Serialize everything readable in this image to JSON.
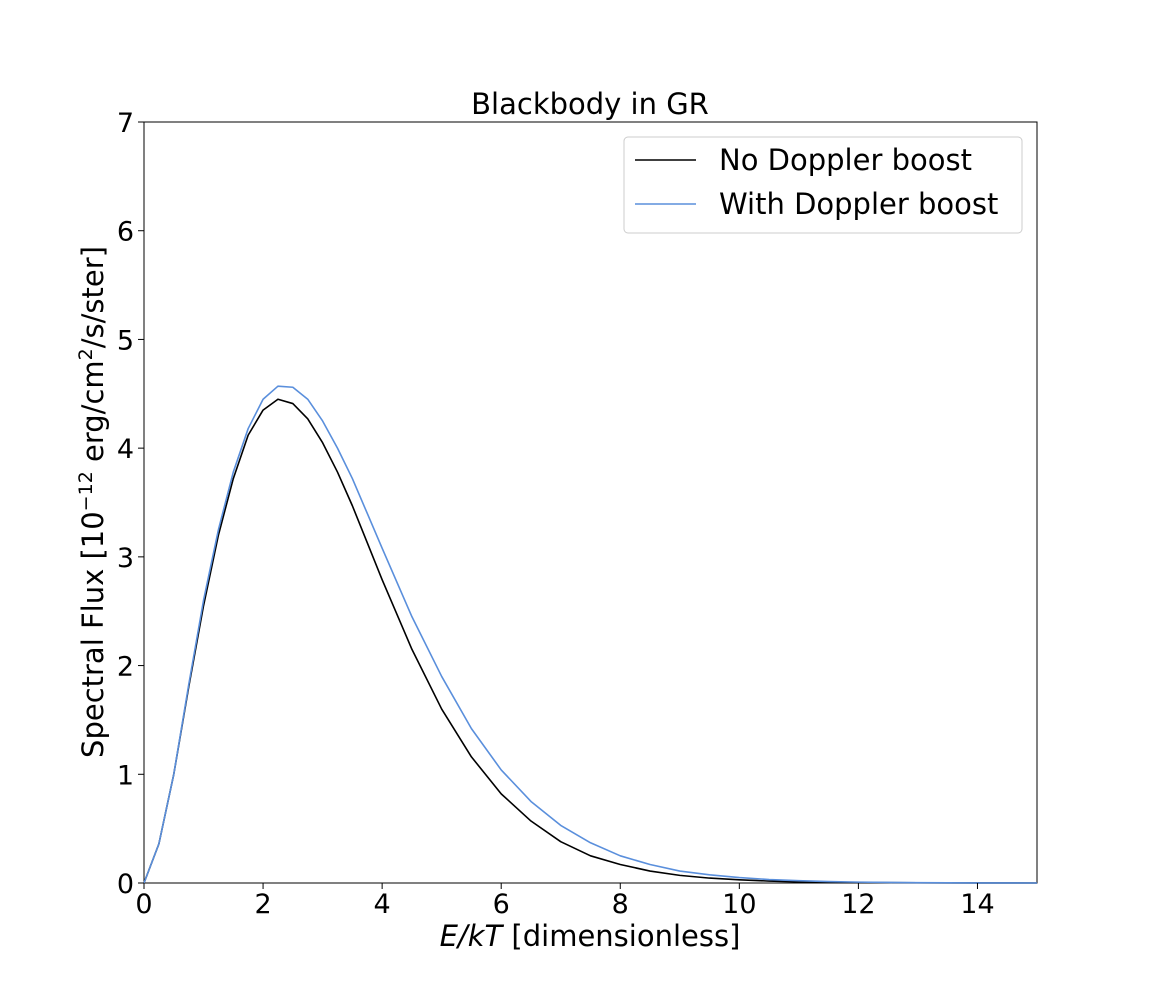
{
  "chart_data": {
    "type": "line",
    "title": "Blackbody in GR",
    "xlabel": {
      "italic": "E/kT",
      "rest": " [dimensionless]"
    },
    "ylabel": {
      "pre": "Spectral Flux [10",
      "sup1": "−12",
      "mid": " erg/cm",
      "sup2": "2",
      "post": "/s/ster]"
    },
    "xlim": [
      0,
      15
    ],
    "ylim": [
      0,
      7
    ],
    "xticks": [
      0,
      2,
      4,
      6,
      8,
      10,
      12,
      14
    ],
    "yticks": [
      0,
      1,
      2,
      3,
      4,
      5,
      6,
      7
    ],
    "grid": false,
    "legend_position": "top-right",
    "x": [
      0,
      0.25,
      0.5,
      0.75,
      1.0,
      1.25,
      1.5,
      1.75,
      2.0,
      2.25,
      2.5,
      2.75,
      3.0,
      3.25,
      3.5,
      3.75,
      4.0,
      4.5,
      5.0,
      5.5,
      6.0,
      6.5,
      7.0,
      7.5,
      8.0,
      8.5,
      9.0,
      9.5,
      10.0,
      10.5,
      11.0,
      11.5,
      12.0,
      13.0,
      14.0,
      15.0
    ],
    "series": [
      {
        "name": "No Doppler boost",
        "color": "#000000",
        "values": [
          0.0,
          0.36,
          1.0,
          1.8,
          2.55,
          3.2,
          3.72,
          4.12,
          4.35,
          4.45,
          4.41,
          4.27,
          4.05,
          3.78,
          3.47,
          3.13,
          2.79,
          2.15,
          1.6,
          1.16,
          0.82,
          0.57,
          0.38,
          0.25,
          0.17,
          0.11,
          0.07,
          0.045,
          0.029,
          0.018,
          0.011,
          0.007,
          0.004,
          0.002,
          0.001,
          0.0
        ]
      },
      {
        "name": "With Doppler boost",
        "color": "#5a8fdc",
        "values": [
          0.0,
          0.36,
          1.0,
          1.82,
          2.6,
          3.25,
          3.78,
          4.18,
          4.45,
          4.57,
          4.56,
          4.45,
          4.25,
          4.0,
          3.72,
          3.4,
          3.08,
          2.45,
          1.9,
          1.42,
          1.04,
          0.75,
          0.53,
          0.37,
          0.25,
          0.17,
          0.11,
          0.075,
          0.05,
          0.032,
          0.021,
          0.013,
          0.008,
          0.003,
          0.001,
          0.0
        ]
      }
    ]
  }
}
